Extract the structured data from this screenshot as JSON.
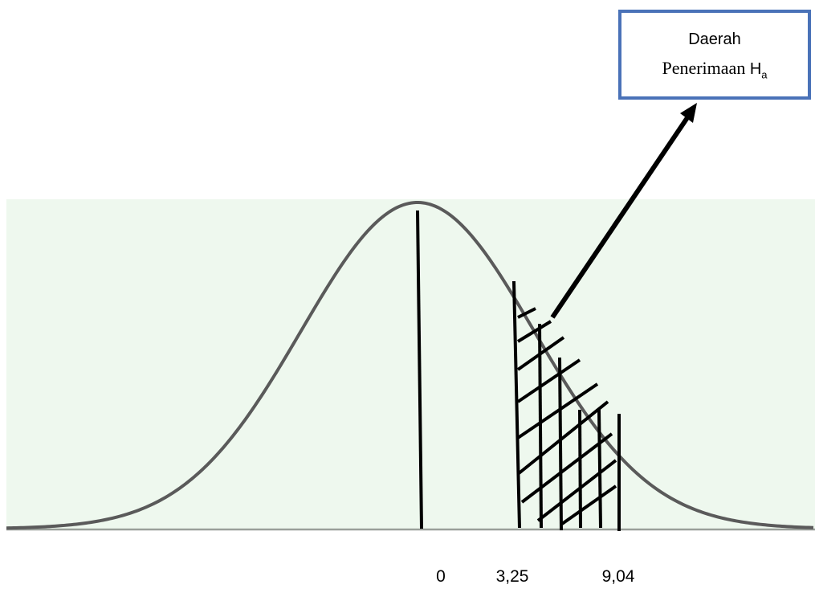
{
  "callout": {
    "line1": "Daerah",
    "line2_text": "Penerimaan ",
    "line2_symbol": "H",
    "line2_subscript": "a"
  },
  "axis": {
    "ticks": [
      "0",
      "3,25",
      "9,04"
    ]
  },
  "colors": {
    "plot_background": "#eef8ee",
    "curve": "#5a5a5a",
    "callout_border": "#4a72b8",
    "lines": "#000000"
  }
}
